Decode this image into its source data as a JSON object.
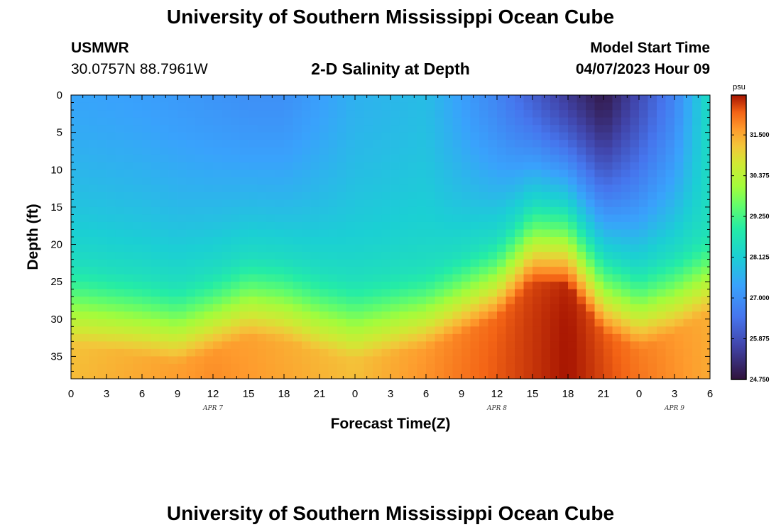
{
  "page": {
    "title": "University of Southern Mississippi Ocean Cube",
    "station": "USMWR",
    "coords": "30.0757N  88.7961W",
    "subtitle": "2-D Salinity at Depth",
    "model_start_label": "Model Start Time",
    "model_start_value": "04/07/2023 Hour 09",
    "footer_title": "University of Southern Mississippi Ocean Cube"
  },
  "chart_data": {
    "type": "heatmap",
    "title": "2-D Salinity at Depth",
    "xlabel": "Forecast Time(Z)",
    "ylabel": "Depth (ft)",
    "x_tick_labels": [
      "0",
      "3",
      "6",
      "9",
      "12",
      "15",
      "18",
      "21",
      "0",
      "3",
      "6",
      "9",
      "12",
      "15",
      "18",
      "21",
      "0",
      "3",
      "6"
    ],
    "x_range_hours": [
      0,
      54
    ],
    "date_labels": [
      {
        "text": "APR 7",
        "hour": 12
      },
      {
        "text": "APR 8",
        "hour": 36
      },
      {
        "text": "APR 9",
        "hour": 51
      }
    ],
    "y_ticks": [
      0,
      5,
      10,
      15,
      20,
      25,
      30,
      35
    ],
    "y_range": [
      0,
      38
    ],
    "colorbar": {
      "unit": "psu",
      "range": [
        24.75,
        32.6
      ],
      "tick_labels": [
        "31.500",
        "30.375",
        "29.250",
        "28.125",
        "27.000",
        "25.875",
        "24.750"
      ],
      "tick_values": [
        31.5,
        30.375,
        29.25,
        28.125,
        27.0,
        25.875,
        24.75
      ]
    },
    "surface_salinity_profile": {
      "hours": [
        0,
        6,
        9,
        12,
        15,
        18,
        24,
        30,
        36,
        42,
        45,
        48,
        51,
        54
      ],
      "values": [
        27.4,
        27.3,
        27.2,
        27.1,
        27.0,
        27.0,
        27.6,
        27.8,
        26.8,
        25.5,
        24.9,
        25.8,
        26.8,
        28.5
      ]
    },
    "halocline_depth_ft": {
      "hours": [
        0,
        6,
        9,
        12,
        15,
        18,
        21,
        24,
        30,
        33,
        36,
        39,
        42,
        45,
        48,
        51,
        54
      ],
      "values": [
        24.5,
        26.0,
        27.0,
        25.5,
        23.5,
        24.0,
        25.5,
        26.5,
        25.0,
        23.0,
        21.0,
        16.0,
        16.5,
        23.0,
        25.0,
        23.0,
        20.0
      ]
    },
    "bottom_salinity_profile": {
      "hours": [
        0,
        12,
        24,
        36,
        42,
        48,
        54
      ],
      "values": [
        31.3,
        31.8,
        31.3,
        32.2,
        32.6,
        32.0,
        31.5
      ]
    }
  }
}
